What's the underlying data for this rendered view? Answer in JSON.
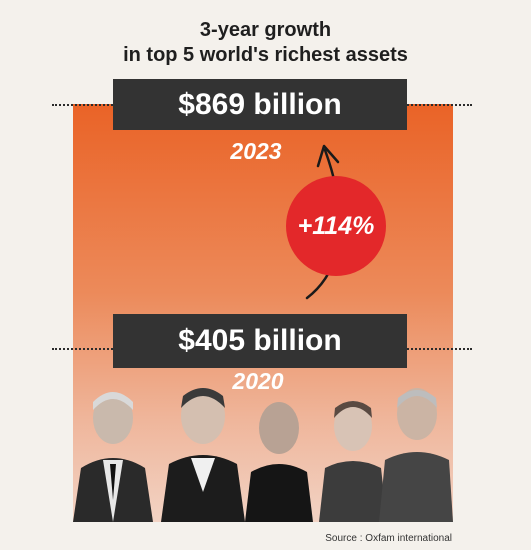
{
  "title": {
    "line1": "3-year growth",
    "line2": "in top 5 world's richest assets"
  },
  "chart_data": {
    "type": "bar",
    "categories": [
      "2020",
      "2023"
    ],
    "values": [
      405,
      869
    ],
    "value_labels": [
      "$405 billion",
      "$869 billion"
    ],
    "growth_label": "+114%",
    "title": "3-year growth in top 5 world's richest assets"
  },
  "source": "Source : Oxfam international",
  "colors": {
    "panel_top": "#ea6327",
    "panel_bottom": "#f2d3c4",
    "box": "#333333",
    "circle": "#e3282a"
  }
}
